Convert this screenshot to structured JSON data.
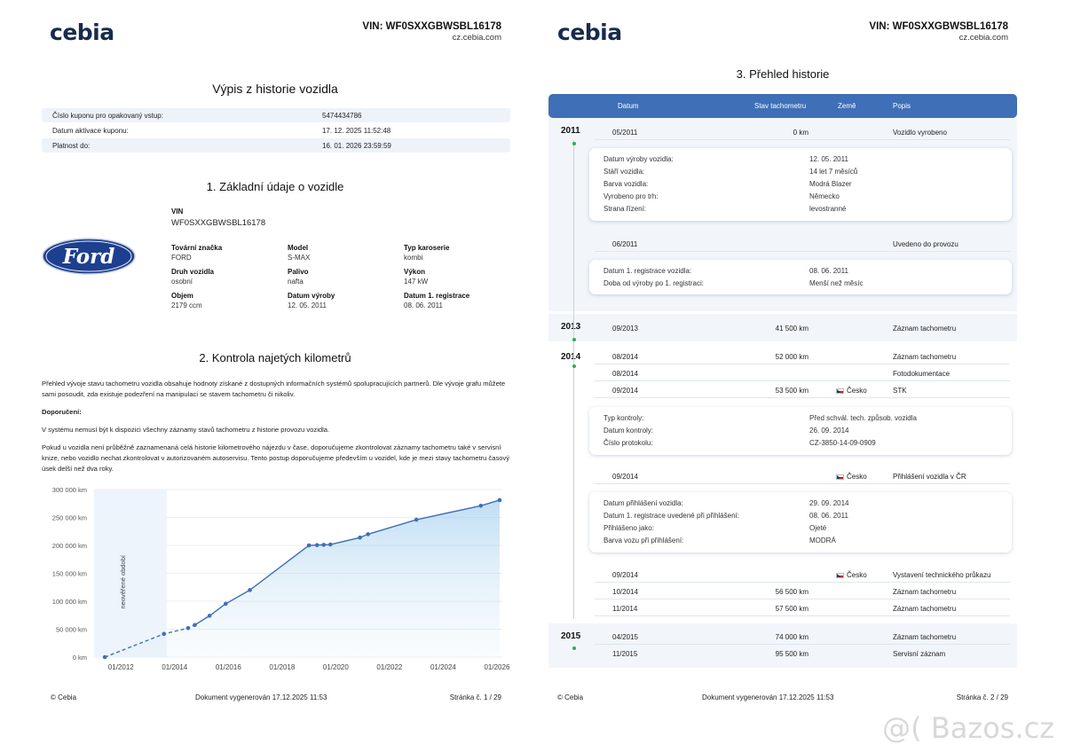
{
  "brand": "cebia",
  "vin_header": "VIN: WF0SXXGBWSBL16178",
  "site": "cz.cebia.com",
  "left": {
    "title": "Výpis z historie vozidla",
    "info_rows": [
      {
        "label": "Číslo kuponu pro opakovaný vstup:",
        "value": "5474434786"
      },
      {
        "label": "Datum aktivace kuponu:",
        "value": "17. 12. 2025 11:52:48"
      },
      {
        "label": "Platnost do:",
        "value": "16. 01. 2026 23:59:59"
      }
    ],
    "section1": "1. Základní údaje o vozidle",
    "vin_label": "VIN",
    "vin_value": "WF0SXXGBWSBL16178",
    "logo_text": "Ford",
    "specs": [
      {
        "label": "Tovární značka",
        "value": "FORD"
      },
      {
        "label": "Model",
        "value": "S-MAX"
      },
      {
        "label": "Typ karoserie",
        "value": "kombi"
      },
      {
        "label": "Druh vozidla",
        "value": "osobní"
      },
      {
        "label": "Palivo",
        "value": "nafta"
      },
      {
        "label": "Výkon",
        "value": "147 kW"
      },
      {
        "label": "Objem",
        "value": "2179 ccm"
      },
      {
        "label": "Datum výroby",
        "value": "12. 05. 2011"
      },
      {
        "label": "Datum 1. registrace",
        "value": "08. 06. 2011"
      }
    ],
    "section2": "2. Kontrola najetých kilometrů",
    "para1": "Přehled vývoje stavu tachometru vozidla obsahuje hodnoty získané z dostupných informačních systémů spolupracujících partnerů. Dle vývoje grafu můžete sami posoudit, zda existuje podezření na manipulaci se stavem tachometru či nikoliv.",
    "recommend_label": "Doporučení:",
    "para2": "V systému nemusí být k dispozici všechny záznamy stavů tachometru z historie provozu vozidla.",
    "para3": "Pokud u vozidla není průběžně zaznamenaná celá historie kilometrového nájezdu v čase, doporučujeme zkontrolovat záznamy tachometru také v servisní knize, nebo vozidlo nechat zkontrolovat v autorizovaném autoservisu. Tento postup doporučujeme především u vozidel, kde je mezi stavy tachometru časový úsek delší než dva roky.",
    "footer_left": "© Cebia",
    "footer_mid": "Dokument vygenerován 17.12.2025 11:53",
    "footer_right": "Stránka č. 1 / 29"
  },
  "chart_data": {
    "type": "line",
    "title": "",
    "xlabel": "",
    "ylabel": "",
    "y_ticks": [
      "0 km",
      "50 000 km",
      "100 000 km",
      "150 000 km",
      "200 000 km",
      "250 000 km",
      "300 000 km"
    ],
    "x_ticks": [
      "01/2012",
      "01/2014",
      "01/2016",
      "01/2018",
      "01/2020",
      "01/2022",
      "01/2024",
      "01/2026"
    ],
    "ylim": [
      0,
      300000
    ],
    "xlim": [
      2011.0,
      2026.2
    ],
    "annotation": "neověřené období",
    "unverified_range": [
      2011.0,
      2013.7
    ],
    "x": [
      2011.4,
      2013.6,
      2014.5,
      2014.75,
      2015.3,
      2015.9,
      2016.8,
      2019.0,
      2019.3,
      2019.55,
      2019.8,
      2020.9,
      2021.2,
      2023.0,
      2025.4,
      2026.1
    ],
    "values": [
      0,
      41500,
      52000,
      57500,
      74000,
      95500,
      120000,
      200000,
      200500,
      201000,
      201500,
      214000,
      220000,
      246000,
      271000,
      281000
    ],
    "dashed_until_index": 3,
    "color": "#3f6fb6"
  },
  "right": {
    "title": "3. Přehled historie",
    "columns": [
      "Datum",
      "Stav tachometru",
      "Země",
      "Popis"
    ],
    "years": [
      "2011",
      "2013",
      "2014",
      "2015"
    ],
    "rows": [
      {
        "date": "05/2011",
        "km": "0 km",
        "country": "",
        "desc": "Vozidlo vyrobeno"
      },
      {
        "date": "06/2011",
        "km": "",
        "country": "",
        "desc": "Uvedeno do provozu"
      },
      {
        "date": "09/2013",
        "km": "41 500 km",
        "country": "",
        "desc": "Záznam tachometru"
      },
      {
        "date": "08/2014",
        "km": "52 000 km",
        "country": "",
        "desc": "Záznam tachometru"
      },
      {
        "date": "08/2014",
        "km": "",
        "country": "",
        "desc": "Fotodokumentace"
      },
      {
        "date": "09/2014",
        "km": "53 500 km",
        "country": "Česko",
        "desc": "STK"
      },
      {
        "date": "09/2014",
        "km": "",
        "country": "Česko",
        "desc": "Přihlášení vozidla v ČR"
      },
      {
        "date": "09/2014",
        "km": "",
        "country": "Česko",
        "desc": "Vystavení technického průkazu"
      },
      {
        "date": "10/2014",
        "km": "56 500 km",
        "country": "",
        "desc": "Záznam tachometru"
      },
      {
        "date": "11/2014",
        "km": "57 500 km",
        "country": "",
        "desc": "Záznam tachometru"
      },
      {
        "date": "04/2015",
        "km": "74 000 km",
        "country": "",
        "desc": "Záznam tachometru"
      },
      {
        "date": "11/2015",
        "km": "95 500 km",
        "country": "",
        "desc": "Servisní záznam"
      }
    ],
    "card1": [
      {
        "k": "Datum výroby vozidla:",
        "v": "12. 05. 2011"
      },
      {
        "k": "Stáří vozidla:",
        "v": "14 let 7 měsíců"
      },
      {
        "k": "Barva vozidla:",
        "v": "Modrá Blazer"
      },
      {
        "k": "Vyrobeno pro trh:",
        "v": "Německo"
      },
      {
        "k": "Strana řízení:",
        "v": "levostranné"
      }
    ],
    "card2": [
      {
        "k": "Datum 1. registrace vozidla:",
        "v": "08. 06. 2011"
      },
      {
        "k": "Doba od výroby po 1. registraci:",
        "v": "Menší než měsíc"
      }
    ],
    "card3": [
      {
        "k": "Typ kontroly:",
        "v": "Před schvál. tech. způsob. vozidla"
      },
      {
        "k": "Datum kontroly:",
        "v": "26. 09. 2014"
      },
      {
        "k": "Číslo protokolu:",
        "v": "CZ-3850-14-09-0909"
      }
    ],
    "card4": [
      {
        "k": "Datum přihlášení vozidla:",
        "v": "29. 09. 2014"
      },
      {
        "k": "Datum 1. registrace uvedené při přihlášení:",
        "v": "08. 06. 2011"
      },
      {
        "k": "Přihlášeno jako:",
        "v": "Ojeté"
      },
      {
        "k": "Barva vozu při přihlášení:",
        "v": "MODRÁ"
      }
    ],
    "footer_left": "© Cebia",
    "footer_mid": "Dokument vygenerován 17.12.2025 11:53",
    "footer_right": "Stránka č. 2 / 29"
  },
  "watermark": "@( Bazos.cz"
}
